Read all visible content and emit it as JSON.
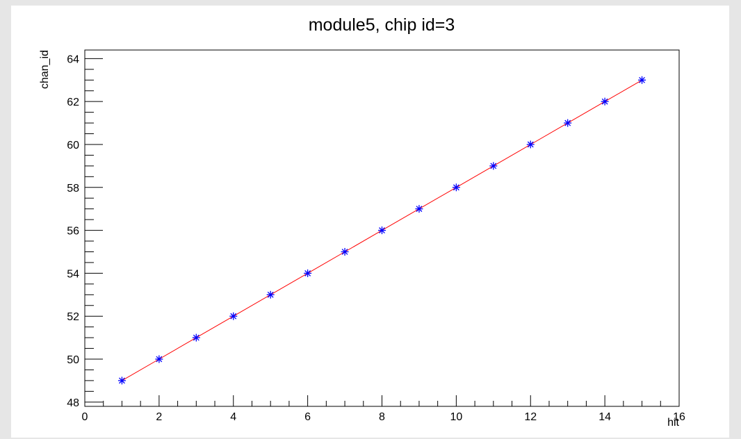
{
  "chart_data": {
    "type": "line",
    "title": "module5, chip id=3",
    "xlabel": "hit",
    "ylabel": "chan_id",
    "xlim": [
      0,
      16
    ],
    "ylim": [
      47.8,
      64.4
    ],
    "x_ticks": [
      "0",
      "2",
      "4",
      "6",
      "8",
      "10",
      "12",
      "14",
      "16"
    ],
    "y_ticks": [
      "48",
      "50",
      "52",
      "54",
      "56",
      "58",
      "60",
      "62",
      "64"
    ],
    "grid": false,
    "legend": "none",
    "series": [
      {
        "x": [
          1,
          2,
          3,
          4,
          5,
          6,
          7,
          8,
          9,
          10,
          11,
          12,
          13,
          14,
          15
        ],
        "values": [
          49,
          50,
          51,
          52,
          53,
          54,
          55,
          56,
          57,
          58,
          59,
          60,
          61,
          62,
          63
        ],
        "marker": "star",
        "marker_color": "#0000ff",
        "line_color": "#ff0000"
      }
    ]
  }
}
